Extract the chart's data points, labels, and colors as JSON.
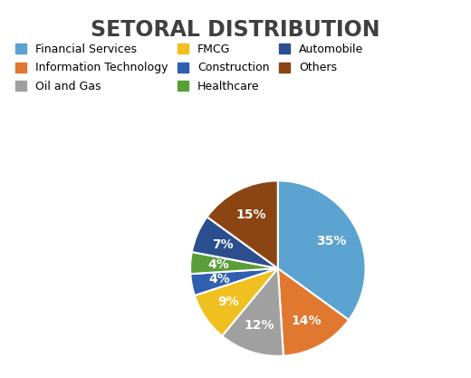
{
  "title": "SETORAL DISTRIBUTION",
  "labels": [
    "Financial Services",
    "Information Technology",
    "Oil and Gas",
    "FMCG",
    "Construction",
    "Healthcare",
    "Automobile",
    "Others"
  ],
  "values": [
    35,
    14,
    12,
    9,
    4,
    4,
    7,
    15
  ],
  "colors": [
    "#5BA3D0",
    "#E07830",
    "#A0A0A0",
    "#F0C020",
    "#3060B0",
    "#5A9E3A",
    "#2B4F8E",
    "#8B4513"
  ],
  "title_fontsize": 17,
  "label_fontsize": 10,
  "legend_fontsize": 9,
  "background_color": "#ffffff"
}
